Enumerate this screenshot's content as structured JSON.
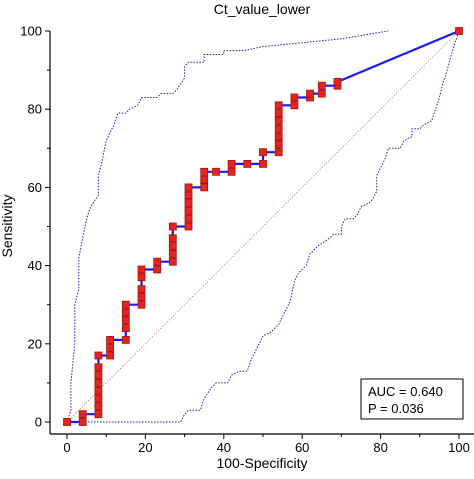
{
  "chart_data": {
    "type": "line",
    "title": "Ct_value_lower",
    "xlabel": "100-Specificity",
    "ylabel": "Sensitivity",
    "xlim": [
      0,
      100
    ],
    "ylim": [
      0,
      100
    ],
    "xticks": [
      0,
      20,
      40,
      60,
      80,
      100
    ],
    "yticks": [
      0,
      20,
      40,
      60,
      80,
      100
    ],
    "grid": false,
    "colors": {
      "roc_line": "#1a1aff",
      "marker_fill": "#e8231f",
      "marker_edge": "#9a1a10",
      "ci_line": "#2020c0",
      "diagonal": "#c06060",
      "axis": "#000000"
    },
    "series": [
      {
        "style": "solid-step-with-markers",
        "points": [
          [
            0,
            0
          ],
          [
            4,
            0
          ],
          [
            4,
            2
          ],
          [
            8,
            2
          ],
          [
            8,
            4
          ],
          [
            8,
            6
          ],
          [
            8,
            8
          ],
          [
            8,
            10
          ],
          [
            8,
            12
          ],
          [
            8,
            14
          ],
          [
            8,
            17
          ],
          [
            11,
            17
          ],
          [
            11,
            19
          ],
          [
            11,
            21
          ],
          [
            15,
            21
          ],
          [
            15,
            24
          ],
          [
            15,
            26
          ],
          [
            15,
            28
          ],
          [
            15,
            30
          ],
          [
            19,
            30
          ],
          [
            19,
            32
          ],
          [
            19,
            34
          ],
          [
            19,
            37
          ],
          [
            19,
            39
          ],
          [
            23,
            39
          ],
          [
            23,
            41
          ],
          [
            27,
            41
          ],
          [
            27,
            43
          ],
          [
            27,
            45
          ],
          [
            27,
            47
          ],
          [
            27,
            50
          ],
          [
            31,
            50
          ],
          [
            31,
            52
          ],
          [
            31,
            54
          ],
          [
            31,
            56
          ],
          [
            31,
            58
          ],
          [
            31,
            60
          ],
          [
            35,
            60
          ],
          [
            35,
            62
          ],
          [
            35,
            64
          ],
          [
            38,
            64
          ],
          [
            42,
            64
          ],
          [
            42,
            66
          ],
          [
            46,
            66
          ],
          [
            50,
            66
          ],
          [
            50,
            69
          ],
          [
            54,
            69
          ],
          [
            54,
            71
          ],
          [
            54,
            73
          ],
          [
            54,
            75
          ],
          [
            54,
            77
          ],
          [
            54,
            79
          ],
          [
            54,
            81
          ],
          [
            58,
            81
          ],
          [
            58,
            83
          ],
          [
            62,
            83
          ],
          [
            62,
            84
          ],
          [
            65,
            84
          ],
          [
            65,
            86
          ],
          [
            69,
            86
          ],
          [
            69,
            87
          ],
          [
            100,
            100
          ]
        ]
      },
      {
        "style": "dotted-upper-ci",
        "points": [
          [
            0,
            0
          ],
          [
            1,
            3
          ],
          [
            1,
            10
          ],
          [
            2,
            20
          ],
          [
            2,
            30
          ],
          [
            3,
            34
          ],
          [
            3,
            42
          ],
          [
            4,
            47
          ],
          [
            5,
            52
          ],
          [
            6,
            55
          ],
          [
            8,
            58
          ],
          [
            8,
            63
          ],
          [
            9,
            67
          ],
          [
            10,
            72
          ],
          [
            12,
            76
          ],
          [
            13,
            79
          ],
          [
            15,
            79
          ],
          [
            16,
            80
          ],
          [
            18,
            81
          ],
          [
            19,
            83
          ],
          [
            23,
            83
          ],
          [
            24,
            84
          ],
          [
            27,
            84
          ],
          [
            28,
            85
          ],
          [
            30,
            88
          ],
          [
            30,
            91
          ],
          [
            31,
            92
          ],
          [
            35,
            92
          ],
          [
            35,
            94
          ],
          [
            40,
            94
          ],
          [
            40,
            95
          ],
          [
            45,
            95
          ],
          [
            50,
            96
          ],
          [
            60,
            97
          ],
          [
            70,
            98
          ],
          [
            82,
            100
          ]
        ]
      },
      {
        "style": "dotted-lower-ci",
        "points": [
          [
            0,
            0
          ],
          [
            15,
            0
          ],
          [
            29,
            0
          ],
          [
            30,
            2
          ],
          [
            31,
            3
          ],
          [
            34,
            3
          ],
          [
            35,
            6
          ],
          [
            37,
            9
          ],
          [
            38,
            10
          ],
          [
            41,
            10
          ],
          [
            42,
            12
          ],
          [
            44,
            13
          ],
          [
            46,
            13
          ],
          [
            47,
            16
          ],
          [
            48,
            18
          ],
          [
            50,
            22
          ],
          [
            52,
            23
          ],
          [
            54,
            25
          ],
          [
            55,
            27
          ],
          [
            57,
            31
          ],
          [
            58,
            36
          ],
          [
            59,
            38
          ],
          [
            61,
            40
          ],
          [
            62,
            43
          ],
          [
            64,
            45
          ],
          [
            67,
            47
          ],
          [
            68,
            48
          ],
          [
            70,
            48
          ],
          [
            70,
            50
          ],
          [
            71,
            52
          ],
          [
            73,
            52
          ],
          [
            74,
            53
          ],
          [
            75,
            55
          ],
          [
            77,
            56
          ],
          [
            78,
            57
          ],
          [
            79,
            59
          ],
          [
            79,
            63
          ],
          [
            80,
            65
          ],
          [
            81,
            67
          ],
          [
            82,
            70
          ],
          [
            85,
            70
          ],
          [
            86,
            72
          ],
          [
            88,
            73
          ],
          [
            88,
            75
          ],
          [
            90,
            75
          ],
          [
            91,
            76
          ],
          [
            93,
            77
          ],
          [
            94,
            80
          ],
          [
            95,
            83
          ],
          [
            96,
            87
          ],
          [
            97,
            90
          ],
          [
            98,
            94
          ],
          [
            99,
            97
          ],
          [
            100,
            100
          ]
        ]
      },
      {
        "style": "dotted-reference-diagonal",
        "points": [
          [
            0,
            0
          ],
          [
            100,
            100
          ]
        ]
      }
    ],
    "legend_box": {
      "position": "bottom-right",
      "auc_text": "AUC = 0.640",
      "p_text": "P = 0.036",
      "auc": 0.64,
      "p": 0.036
    }
  }
}
